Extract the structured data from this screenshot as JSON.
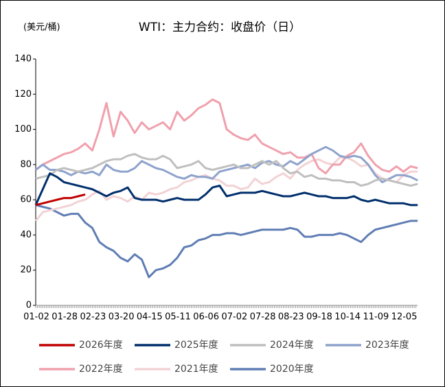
{
  "chart_data": {
    "type": "line",
    "title": "WTI：主力合约：收盘价（日）",
    "y_label": "(美元/桶)",
    "categories": [
      "01-02",
      null,
      null,
      null,
      "01-28",
      null,
      null,
      null,
      "02-23",
      null,
      null,
      null,
      "03-20",
      null,
      null,
      null,
      "04-15",
      null,
      null,
      null,
      "05-11",
      null,
      null,
      null,
      "06-06",
      null,
      null,
      null,
      "07-02",
      null,
      null,
      null,
      "07-28",
      null,
      null,
      null,
      "08-23",
      null,
      null,
      null,
      "09-18",
      null,
      null,
      null,
      "10-14",
      null,
      null,
      null,
      "11-09",
      null,
      null,
      null,
      "12-05",
      null,
      null
    ],
    "ylim": [
      0,
      140
    ],
    "yticks": [
      0,
      20,
      40,
      60,
      80,
      100,
      120,
      140
    ],
    "series": [
      {
        "name": "2026年度",
        "color": "#c00000",
        "values": [
          57,
          58,
          59,
          60,
          61,
          61,
          62,
          63,
          null,
          null,
          null,
          null,
          null,
          null,
          null,
          null,
          null,
          null,
          null,
          null,
          null,
          null,
          null,
          null,
          null,
          null,
          null,
          null,
          null,
          null,
          null,
          null,
          null,
          null,
          null,
          null,
          null,
          null,
          null,
          null,
          null,
          null,
          null,
          null,
          null,
          null,
          null,
          null,
          null,
          null,
          null,
          null,
          null,
          null,
          null
        ]
      },
      {
        "name": "2025年度",
        "color": "#002f6c",
        "values": [
          57,
          66,
          75,
          73,
          70,
          69,
          68,
          67,
          66,
          64,
          62,
          64,
          65,
          67,
          61,
          60,
          60,
          60,
          59,
          60,
          61,
          60,
          60,
          60,
          63,
          67,
          68,
          62,
          63,
          64,
          64,
          64,
          65,
          64,
          63,
          62,
          62,
          63,
          64,
          63,
          62,
          62,
          61,
          61,
          61,
          62,
          60,
          59,
          60,
          59,
          58,
          58,
          58,
          57,
          57
        ]
      },
      {
        "name": "2024年度",
        "color": "#bfbfbf",
        "values": [
          72,
          73,
          74,
          77,
          78,
          77,
          76,
          77,
          78,
          80,
          82,
          83,
          83,
          85,
          86,
          84,
          83,
          83,
          85,
          83,
          78,
          79,
          80,
          82,
          78,
          77,
          78,
          79,
          80,
          78,
          78,
          80,
          82,
          80,
          82,
          78,
          75,
          76,
          73,
          74,
          72,
          72,
          71,
          71,
          70,
          70,
          68,
          69,
          71,
          72,
          71,
          70,
          69,
          68,
          69
        ]
      },
      {
        "name": "2023年度",
        "color": "#8ea2cc",
        "values": [
          77,
          80,
          77,
          77,
          76,
          74,
          76,
          75,
          76,
          74,
          80,
          77,
          76,
          76,
          78,
          82,
          80,
          78,
          77,
          75,
          73,
          72,
          74,
          73,
          73,
          72,
          76,
          77,
          78,
          79,
          80,
          78,
          81,
          82,
          80,
          79,
          82,
          80,
          83,
          86,
          88,
          90,
          88,
          85,
          84,
          85,
          84,
          80,
          74,
          70,
          72,
          74,
          74,
          73,
          71
        ]
      },
      {
        "name": "2022年度",
        "color": "#f0a0ac",
        "values": [
          77,
          80,
          82,
          84,
          86,
          87,
          89,
          92,
          88,
          100,
          115,
          96,
          110,
          105,
          98,
          104,
          100,
          102,
          104,
          100,
          110,
          105,
          108,
          112,
          114,
          117,
          115,
          100,
          97,
          95,
          94,
          97,
          92,
          90,
          88,
          86,
          87,
          84,
          84,
          86,
          78,
          75,
          80,
          80,
          85,
          87,
          92,
          85,
          80,
          77,
          76,
          79,
          76,
          79,
          78
        ]
      },
      {
        "name": "2021年度",
        "color": "#f2d2d5",
        "values": [
          48,
          53,
          54,
          55,
          56,
          57,
          59,
          60,
          63,
          65,
          60,
          62,
          61,
          59,
          62,
          60,
          64,
          63,
          64,
          66,
          67,
          70,
          71,
          73,
          74,
          72,
          71,
          68,
          68,
          66,
          67,
          72,
          69,
          70,
          73,
          75,
          72,
          77,
          80,
          82,
          83,
          81,
          80,
          84,
          84,
          82,
          79,
          80,
          75,
          72,
          71,
          70,
          74,
          76,
          76
        ]
      },
      {
        "name": "2020年度",
        "color": "#5f7db4",
        "values": [
          57,
          56,
          55,
          53,
          51,
          52,
          52,
          47,
          44,
          36,
          33,
          31,
          27,
          25,
          29,
          26,
          16,
          20,
          21,
          23,
          27,
          33,
          34,
          37,
          38,
          40,
          40,
          41,
          41,
          40,
          41,
          42,
          43,
          43,
          43,
          43,
          44,
          43,
          39,
          39,
          40,
          40,
          40,
          41,
          40,
          38,
          36,
          40,
          43,
          44,
          45,
          46,
          47,
          48,
          48
        ]
      }
    ]
  }
}
